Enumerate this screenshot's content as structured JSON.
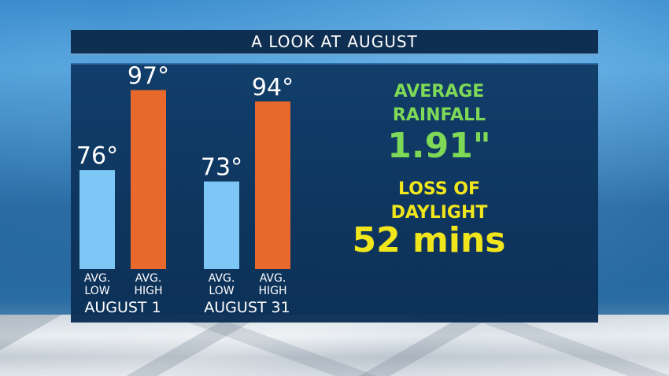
{
  "title": "A LOOK AT AUGUST",
  "chart_data": {
    "type": "bar",
    "categories": [
      "AUGUST 1",
      "AUGUST 31"
    ],
    "series": [
      {
        "name_lines": [
          "AVG.",
          "LOW"
        ],
        "values": [
          76,
          73
        ],
        "value_labels": [
          "76°",
          "73°"
        ],
        "color": "#7cc7f5"
      },
      {
        "name_lines": [
          "AVG.",
          "HIGH"
        ],
        "values": [
          97,
          94
        ],
        "value_labels": [
          "97°",
          "94°"
        ],
        "color": "#e9692c"
      }
    ],
    "ylim": [
      50,
      100
    ]
  },
  "rainfall": {
    "heading_line1": "AVERAGE",
    "heading_line2": "RAINFALL",
    "value": "1.91\"",
    "color": "#7ed957"
  },
  "daylight": {
    "heading_line1": "LOSS OF",
    "heading_line2": "DAYLIGHT",
    "value": "52 mins",
    "color": "#f1e51c"
  }
}
